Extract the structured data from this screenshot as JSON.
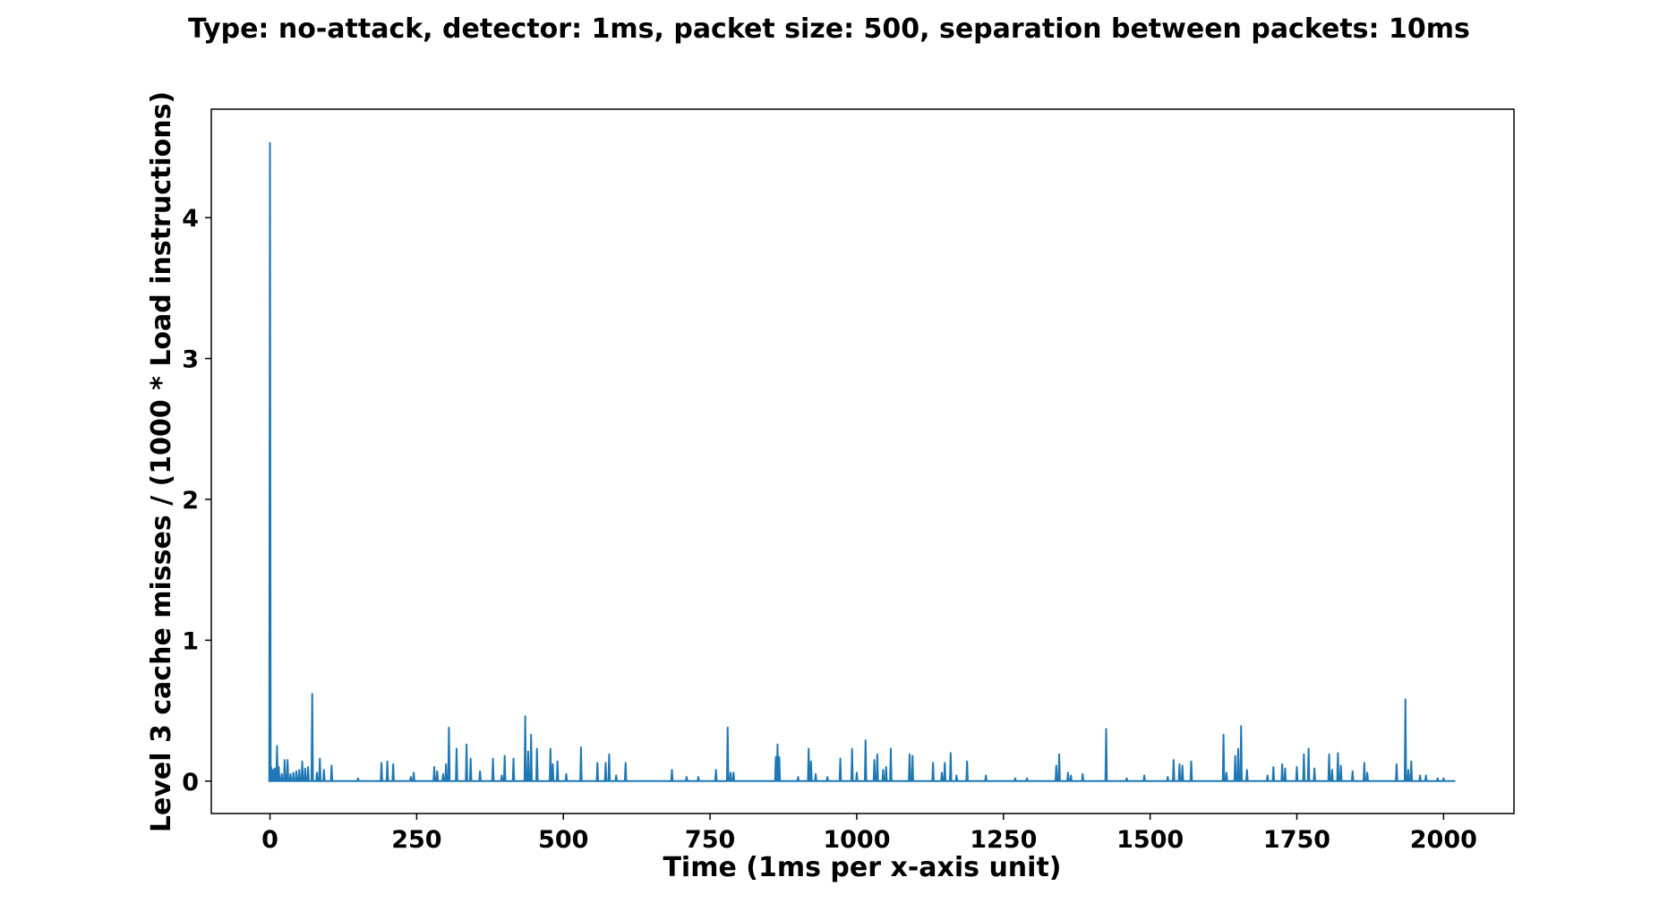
{
  "chart_data": {
    "type": "line",
    "title": "Type: no-attack,   detector: 1ms,   packet size: 500,   separation between packets: 10ms",
    "xlabel": "Time (1ms per x-axis unit)",
    "ylabel": "Level 3 cache misses / (1000 * Load instructions)",
    "xlim": [
      -100,
      2120
    ],
    "ylim": [
      -0.23,
      4.77
    ],
    "x_ticks": [
      0,
      250,
      500,
      750,
      1000,
      1250,
      1500,
      1750,
      2000
    ],
    "x_tick_labels": [
      "0",
      "250",
      "500",
      "750",
      "1000",
      "1250",
      "1500",
      "1750",
      "2000"
    ],
    "y_ticks": [
      0,
      1,
      2,
      3,
      4
    ],
    "y_tick_labels": [
      "0",
      "1",
      "2",
      "3",
      "4"
    ],
    "grid": false,
    "series_color": "#1f77b4",
    "series": [
      {
        "x_start": 0,
        "x_end": 2020,
        "baseline": 0.0,
        "spikes": [
          [
            0,
            4.53
          ],
          [
            2,
            0.1
          ],
          [
            5,
            0.08
          ],
          [
            8,
            0.09
          ],
          [
            12,
            0.25
          ],
          [
            15,
            0.1
          ],
          [
            20,
            0.05
          ],
          [
            25,
            0.15
          ],
          [
            30,
            0.15
          ],
          [
            35,
            0.05
          ],
          [
            40,
            0.06
          ],
          [
            45,
            0.07
          ],
          [
            50,
            0.08
          ],
          [
            55,
            0.14
          ],
          [
            60,
            0.09
          ],
          [
            65,
            0.1
          ],
          [
            72,
            0.62
          ],
          [
            80,
            0.06
          ],
          [
            85,
            0.16
          ],
          [
            92,
            0.08
          ],
          [
            105,
            0.11
          ],
          [
            150,
            0.02
          ],
          [
            190,
            0.13
          ],
          [
            200,
            0.14
          ],
          [
            210,
            0.12
          ],
          [
            240,
            0.03
          ],
          [
            245,
            0.06
          ],
          [
            280,
            0.1
          ],
          [
            285,
            0.07
          ],
          [
            295,
            0.05
          ],
          [
            300,
            0.12
          ],
          [
            305,
            0.38
          ],
          [
            318,
            0.23
          ],
          [
            335,
            0.26
          ],
          [
            342,
            0.16
          ],
          [
            358,
            0.07
          ],
          [
            380,
            0.16
          ],
          [
            395,
            0.04
          ],
          [
            400,
            0.18
          ],
          [
            415,
            0.16
          ],
          [
            435,
            0.46
          ],
          [
            440,
            0.21
          ],
          [
            445,
            0.33
          ],
          [
            455,
            0.23
          ],
          [
            478,
            0.23
          ],
          [
            482,
            0.12
          ],
          [
            490,
            0.14
          ],
          [
            505,
            0.05
          ],
          [
            530,
            0.24
          ],
          [
            558,
            0.13
          ],
          [
            572,
            0.13
          ],
          [
            578,
            0.19
          ],
          [
            590,
            0.04
          ],
          [
            606,
            0.13
          ],
          [
            685,
            0.08
          ],
          [
            710,
            0.03
          ],
          [
            730,
            0.03
          ],
          [
            760,
            0.08
          ],
          [
            780,
            0.38
          ],
          [
            785,
            0.06
          ],
          [
            790,
            0.06
          ],
          [
            862,
            0.17
          ],
          [
            865,
            0.26
          ],
          [
            868,
            0.17
          ],
          [
            900,
            0.03
          ],
          [
            918,
            0.23
          ],
          [
            922,
            0.14
          ],
          [
            930,
            0.05
          ],
          [
            950,
            0.03
          ],
          [
            972,
            0.16
          ],
          [
            992,
            0.23
          ],
          [
            1000,
            0.06
          ],
          [
            1015,
            0.29
          ],
          [
            1030,
            0.15
          ],
          [
            1035,
            0.19
          ],
          [
            1045,
            0.08
          ],
          [
            1050,
            0.1
          ],
          [
            1058,
            0.23
          ],
          [
            1090,
            0.19
          ],
          [
            1095,
            0.18
          ],
          [
            1130,
            0.13
          ],
          [
            1145,
            0.06
          ],
          [
            1150,
            0.13
          ],
          [
            1160,
            0.2
          ],
          [
            1170,
            0.04
          ],
          [
            1188,
            0.14
          ],
          [
            1220,
            0.04
          ],
          [
            1270,
            0.02
          ],
          [
            1290,
            0.02
          ],
          [
            1340,
            0.11
          ],
          [
            1345,
            0.19
          ],
          [
            1360,
            0.06
          ],
          [
            1365,
            0.04
          ],
          [
            1385,
            0.05
          ],
          [
            1425,
            0.37
          ],
          [
            1460,
            0.02
          ],
          [
            1490,
            0.04
          ],
          [
            1530,
            0.03
          ],
          [
            1540,
            0.15
          ],
          [
            1550,
            0.12
          ],
          [
            1555,
            0.11
          ],
          [
            1570,
            0.14
          ],
          [
            1625,
            0.33
          ],
          [
            1630,
            0.06
          ],
          [
            1645,
            0.18
          ],
          [
            1650,
            0.23
          ],
          [
            1655,
            0.39
          ],
          [
            1665,
            0.08
          ],
          [
            1700,
            0.04
          ],
          [
            1710,
            0.1
          ],
          [
            1725,
            0.12
          ],
          [
            1730,
            0.09
          ],
          [
            1750,
            0.1
          ],
          [
            1762,
            0.19
          ],
          [
            1770,
            0.23
          ],
          [
            1780,
            0.09
          ],
          [
            1805,
            0.19
          ],
          [
            1810,
            0.08
          ],
          [
            1820,
            0.2
          ],
          [
            1825,
            0.11
          ],
          [
            1845,
            0.07
          ],
          [
            1865,
            0.13
          ],
          [
            1870,
            0.06
          ],
          [
            1920,
            0.12
          ],
          [
            1935,
            0.58
          ],
          [
            1940,
            0.08
          ],
          [
            1945,
            0.14
          ],
          [
            1960,
            0.04
          ],
          [
            1970,
            0.04
          ],
          [
            1990,
            0.02
          ],
          [
            2000,
            0.02
          ]
        ]
      }
    ]
  }
}
